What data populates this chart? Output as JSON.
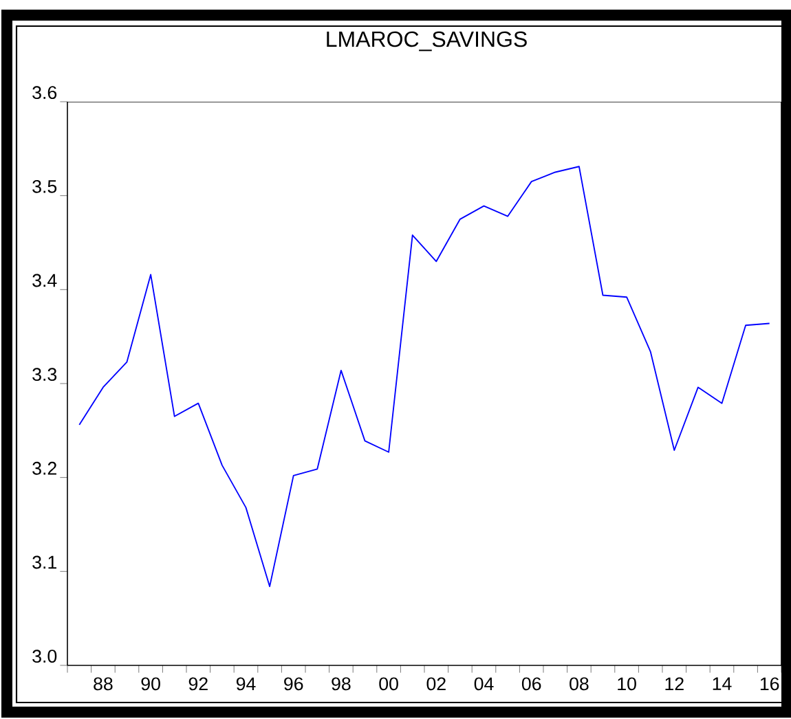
{
  "chart_data": {
    "type": "line",
    "title": "LMAROC_SAVINGS",
    "x": [
      1987,
      1988,
      1989,
      1990,
      1991,
      1992,
      1993,
      1994,
      1995,
      1996,
      1997,
      1998,
      1999,
      2000,
      2001,
      2002,
      2003,
      2004,
      2005,
      2006,
      2007,
      2008,
      2009,
      2010,
      2011,
      2012,
      2013,
      2014,
      2015,
      2016
    ],
    "series": [
      {
        "color": "#0000ff",
        "values": [
          3.256,
          3.296,
          3.323,
          3.416,
          3.265,
          3.279,
          3.213,
          3.168,
          3.084,
          3.202,
          3.209,
          3.314,
          3.239,
          3.227,
          3.458,
          3.43,
          3.475,
          3.489,
          3.478,
          3.515,
          3.525,
          3.531,
          3.394,
          3.392,
          3.334,
          3.229,
          3.296,
          3.279,
          3.362,
          3.364
        ]
      }
    ],
    "xlim": [
      1986.5,
      2016.5
    ],
    "xticks": [
      {
        "value": 1986.5,
        "label": null
      },
      {
        "value": 1987.5,
        "label": null
      },
      {
        "value": 1988,
        "label": "88"
      },
      {
        "value": 1988.5,
        "label": null
      },
      {
        "value": 1989.5,
        "label": null
      },
      {
        "value": 1990,
        "label": "90"
      },
      {
        "value": 1990.5,
        "label": null
      },
      {
        "value": 1991.5,
        "label": null
      },
      {
        "value": 1992,
        "label": "92"
      },
      {
        "value": 1992.5,
        "label": null
      },
      {
        "value": 1993.5,
        "label": null
      },
      {
        "value": 1994,
        "label": "94"
      },
      {
        "value": 1994.5,
        "label": null
      },
      {
        "value": 1995.5,
        "label": null
      },
      {
        "value": 1996,
        "label": "96"
      },
      {
        "value": 1996.5,
        "label": null
      },
      {
        "value": 1997.5,
        "label": null
      },
      {
        "value": 1998,
        "label": "98"
      },
      {
        "value": 1998.5,
        "label": null
      },
      {
        "value": 1999.5,
        "label": null
      },
      {
        "value": 2000,
        "label": "00"
      },
      {
        "value": 2000.5,
        "label": null
      },
      {
        "value": 2001.5,
        "label": null
      },
      {
        "value": 2002,
        "label": "02"
      },
      {
        "value": 2002.5,
        "label": null
      },
      {
        "value": 2003.5,
        "label": null
      },
      {
        "value": 2004,
        "label": "04"
      },
      {
        "value": 2004.5,
        "label": null
      },
      {
        "value": 2005.5,
        "label": null
      },
      {
        "value": 2006,
        "label": "06"
      },
      {
        "value": 2006.5,
        "label": null
      },
      {
        "value": 2007.5,
        "label": null
      },
      {
        "value": 2008,
        "label": "08"
      },
      {
        "value": 2008.5,
        "label": null
      },
      {
        "value": 2009.5,
        "label": null
      },
      {
        "value": 2010,
        "label": "10"
      },
      {
        "value": 2010.5,
        "label": null
      },
      {
        "value": 2011.5,
        "label": null
      },
      {
        "value": 2012,
        "label": "12"
      },
      {
        "value": 2012.5,
        "label": null
      },
      {
        "value": 2013.5,
        "label": null
      },
      {
        "value": 2014,
        "label": "14"
      },
      {
        "value": 2014.5,
        "label": null
      },
      {
        "value": 2015.5,
        "label": null
      },
      {
        "value": 2016,
        "label": "16"
      },
      {
        "value": 2016.5,
        "label": null
      }
    ],
    "ylim": [
      3.0,
      3.6
    ],
    "yticks": [
      {
        "value": 3.0,
        "label": "3.0"
      },
      3.1,
      3.2,
      3.3,
      3.4,
      3.5,
      3.6
    ],
    "grid": false,
    "marker": "none",
    "line_style": "solid"
  }
}
